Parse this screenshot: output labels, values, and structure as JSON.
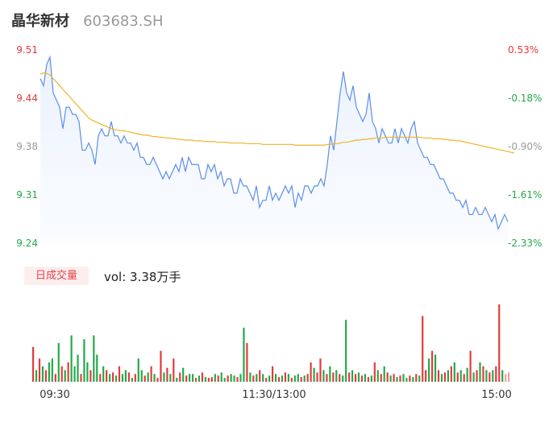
{
  "header": {
    "name": "晶华新材",
    "code": "603683.SH"
  },
  "volume": {
    "badge": "日成交量",
    "label": "vol: 3.38万手"
  },
  "colors": {
    "price": "#5b8fe8",
    "avg": "#f0b428",
    "up": "#e33a3a",
    "down": "#23a84a",
    "neutral": "#999999"
  },
  "chart_data": [
    {
      "type": "line",
      "series": [
        {
          "values": [
            9.47,
            9.46,
            9.49,
            9.5,
            9.45,
            9.44,
            9.43,
            9.4,
            9.43,
            9.43,
            9.42,
            9.42,
            9.41,
            9.37,
            9.37,
            9.38,
            9.37,
            9.35,
            9.39,
            9.4,
            9.39,
            9.39,
            9.41,
            9.39,
            9.39,
            9.38,
            9.39,
            9.38,
            9.38,
            9.37,
            9.38,
            9.36,
            9.36,
            9.35,
            9.35,
            9.36,
            9.35,
            9.34,
            9.33,
            9.34,
            9.33,
            9.34,
            9.35,
            9.34,
            9.36,
            9.34,
            9.36,
            9.35,
            9.35,
            9.35,
            9.33,
            9.33,
            9.35,
            9.34,
            9.35,
            9.33,
            9.34,
            9.32,
            9.33,
            9.33,
            9.31,
            9.31,
            9.33,
            9.32,
            9.32,
            9.31,
            9.3,
            9.32,
            9.29,
            9.3,
            9.3,
            9.32,
            9.3,
            9.31,
            9.3,
            9.31,
            9.32,
            9.31,
            9.32,
            9.29,
            9.31,
            9.3,
            9.32,
            9.32,
            9.31,
            9.32,
            9.32,
            9.33,
            9.32,
            9.35,
            9.39,
            9.37,
            9.41,
            9.45,
            9.48,
            9.45,
            9.44,
            9.46,
            9.43,
            9.42,
            9.41,
            9.42,
            9.45,
            9.41,
            9.4,
            9.38,
            9.4,
            9.39,
            9.38,
            9.38,
            9.4,
            9.38,
            9.4,
            9.39,
            9.38,
            9.4,
            9.41,
            9.38,
            9.37,
            9.36,
            9.36,
            9.35,
            9.35,
            9.34,
            9.33,
            9.33,
            9.32,
            9.31,
            9.31,
            9.3,
            9.3,
            9.29,
            9.3,
            9.28,
            9.28,
            9.29,
            9.28,
            9.28,
            9.29,
            9.28,
            9.27,
            9.28,
            9.26,
            9.27,
            9.28,
            9.27
          ]
        },
        {
          "values": [
            9.476,
            9.478,
            9.477,
            9.475,
            9.47,
            9.465,
            9.46,
            9.455,
            9.45,
            9.445,
            9.44,
            9.435,
            9.43,
            9.425,
            9.42,
            9.415,
            9.412,
            9.41,
            9.408,
            9.406,
            9.404,
            9.402,
            9.4,
            9.399,
            9.398,
            9.397,
            9.397,
            9.396,
            9.395,
            9.394,
            9.393,
            9.392,
            9.391,
            9.391,
            9.39,
            9.389,
            9.389,
            9.388,
            9.388,
            9.387,
            9.387,
            9.386,
            9.386,
            9.385,
            9.385,
            9.384,
            9.384,
            9.384,
            9.383,
            9.383,
            9.383,
            9.382,
            9.382,
            9.382,
            9.382,
            9.381,
            9.381,
            9.381,
            9.381,
            9.38,
            9.38,
            9.38,
            9.38,
            9.38,
            9.379,
            9.379,
            9.379,
            9.379,
            9.379,
            9.378,
            9.378,
            9.378,
            9.378,
            9.378,
            9.378,
            9.378,
            9.378,
            9.378,
            9.378,
            9.377,
            9.377,
            9.377,
            9.377,
            9.377,
            9.377,
            9.377,
            9.377,
            9.377,
            9.377,
            9.378,
            9.378,
            9.379,
            9.379,
            9.38,
            9.381,
            9.381,
            9.382,
            9.383,
            9.384,
            9.384,
            9.385,
            9.385,
            9.386,
            9.386,
            9.387,
            9.387,
            9.387,
            9.388,
            9.388,
            9.388,
            9.388,
            9.388,
            9.388,
            9.388,
            9.388,
            9.388,
            9.388,
            9.388,
            9.388,
            9.387,
            9.387,
            9.387,
            9.386,
            9.386,
            9.386,
            9.385,
            9.385,
            9.384,
            9.384,
            9.383,
            9.383,
            9.382,
            9.381,
            9.38,
            9.379,
            9.378,
            9.377,
            9.376,
            9.375,
            9.374,
            9.373,
            9.372,
            9.371,
            9.37,
            9.369,
            9.368,
            9.367,
            9.366
          ]
        }
      ],
      "ylim": [
        9.24,
        9.51
      ],
      "left_ticks": [
        "9.51",
        "9.44",
        "9.38",
        "9.31",
        "9.24"
      ],
      "right_ticks": [
        "0.53%",
        "-0.18%",
        "-0.90%",
        "-1.61%",
        "-2.33%"
      ],
      "x_ticks": [
        "09:30",
        "11:30/13:00",
        "15:00"
      ]
    },
    {
      "type": "bar",
      "values": [
        0.45,
        0.15,
        0.3,
        0.2,
        0.15,
        0.25,
        0.3,
        0.1,
        0.5,
        0.2,
        0.15,
        0.25,
        0.6,
        0.2,
        0.35,
        0.1,
        0.55,
        0.25,
        0.15,
        0.6,
        0.35,
        0.1,
        0.2,
        0.15,
        0.1,
        0.12,
        0.08,
        0.2,
        0.1,
        0.15,
        0.12,
        0.05,
        0.1,
        0.3,
        0.15,
        0.08,
        0.12,
        0.2,
        0.1,
        0.05,
        0.4,
        0.12,
        0.18,
        0.1,
        0.3,
        0.05,
        0.12,
        0.18,
        0.08,
        0.1,
        0.1,
        0.05,
        0.08,
        0.12,
        0.06,
        0.05,
        0.06,
        0.1,
        0.08,
        0.12,
        0.05,
        0.08,
        0.1,
        0.08,
        0.06,
        0.1,
        0.7,
        0.5,
        0.12,
        0.08,
        0.1,
        0.15,
        0.1,
        0.05,
        0.08,
        0.2,
        0.1,
        0.06,
        0.08,
        0.12,
        0.1,
        0.05,
        0.08,
        0.1,
        0.06,
        0.08,
        0.1,
        0.25,
        0.18,
        0.12,
        0.3,
        0.15,
        0.1,
        0.2,
        0.12,
        0.15,
        0.1,
        0.08,
        0.8,
        0.12,
        0.15,
        0.1,
        0.12,
        0.08,
        0.1,
        0.06,
        0.08,
        0.25,
        0.15,
        0.1,
        0.2,
        0.12,
        0.08,
        0.1,
        0.06,
        0.08,
        0.1,
        0.05,
        0.08,
        0.06,
        0.1,
        0.08,
        0.85,
        0.15,
        0.3,
        0.4,
        0.35,
        0.15,
        0.1,
        0.12,
        0.15,
        0.2,
        0.25,
        0.12,
        0.15,
        0.1,
        0.18,
        0.4,
        0.12,
        0.15,
        0.25,
        0.2,
        0.15,
        0.12,
        0.15,
        0.2,
        1.0,
        0.15,
        0.1,
        0.12
      ],
      "directions": [
        1,
        -1,
        1,
        -1,
        1,
        -1,
        -1,
        1,
        -1,
        1,
        -1,
        1,
        -1,
        -1,
        -1,
        1,
        -1,
        -1,
        1,
        -1,
        -1,
        1,
        -1,
        1,
        -1,
        1,
        -1,
        1,
        -1,
        -1,
        1,
        -1,
        1,
        -1,
        -1,
        1,
        -1,
        1,
        -1,
        1,
        1,
        -1,
        1,
        -1,
        1,
        -1,
        1,
        -1,
        1,
        -1,
        -1,
        1,
        -1,
        1,
        -1,
        1,
        1,
        -1,
        1,
        -1,
        -1,
        1,
        -1,
        -1,
        1,
        -1,
        -1,
        1,
        -1,
        1,
        -1,
        1,
        -1,
        1,
        -1,
        1,
        -1,
        1,
        -1,
        1,
        -1,
        1,
        -1,
        -1,
        1,
        -1,
        1,
        1,
        -1,
        1,
        1,
        -1,
        1,
        -1,
        1,
        -1,
        1,
        -1,
        -1,
        1,
        -1,
        1,
        -1,
        1,
        -1,
        1,
        -1,
        1,
        -1,
        1,
        -1,
        1,
        -1,
        1,
        -1,
        1,
        -1,
        -1,
        1,
        -1,
        1,
        -1,
        1,
        1,
        -1,
        1,
        -1,
        1,
        -1,
        1,
        -1,
        1,
        -1,
        1,
        -1,
        1,
        -1,
        1,
        -1,
        1,
        -1,
        1,
        -1,
        1,
        -1,
        1,
        1,
        -1,
        0
      ]
    }
  ]
}
